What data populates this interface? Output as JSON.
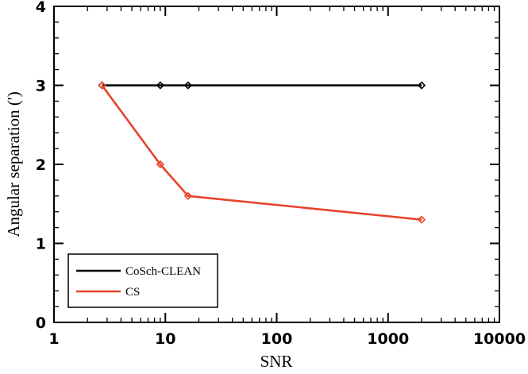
{
  "chart_data": {
    "type": "line",
    "xlabel": "SNR",
    "ylabel": "Angular separation (')",
    "x_scale": "log",
    "xlim": [
      1,
      10000
    ],
    "ylim": [
      0,
      4
    ],
    "x_ticks": [
      1,
      10,
      100,
      1000,
      10000
    ],
    "x_tick_labels": [
      "1",
      "10",
      "100",
      "1000",
      "10000"
    ],
    "y_ticks": [
      0,
      1,
      2,
      3,
      4
    ],
    "y_tick_labels": [
      "0",
      "1",
      "2",
      "3",
      "4"
    ],
    "grid": false,
    "legend_position": "bottom-left",
    "series": [
      {
        "name": "CoSch-CLEAN",
        "color": "#000000",
        "marker": "diamond",
        "x": [
          2.7,
          9,
          16,
          2000
        ],
        "y": [
          3.0,
          3.0,
          3.0,
          3.0
        ]
      },
      {
        "name": "CS",
        "color": "#e8432b",
        "marker": "diamond",
        "x": [
          2.7,
          9,
          16,
          2000
        ],
        "y": [
          3.0,
          2.0,
          1.6,
          1.3
        ]
      }
    ]
  }
}
